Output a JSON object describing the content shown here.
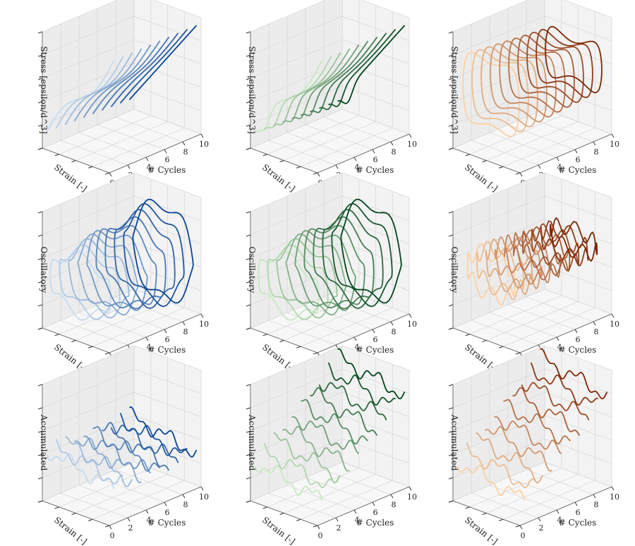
{
  "figure": {
    "type": "3d-line-grid",
    "x_axis_label": "# Cycles",
    "y_axis_label": "Strain [-]",
    "x_ticks": [
      "0",
      "2",
      "4",
      "6",
      "8",
      "10"
    ],
    "rows": [
      {
        "z_label": "Stress [epsilon/d^3]",
        "kind": "stress"
      },
      {
        "z_label": "Oscillatory",
        "kind": "oscillatory"
      },
      {
        "z_label": "Accumulated",
        "kind": "accumulated"
      }
    ],
    "columns": [
      {
        "name": "blue",
        "colors": [
          "#c6dbef",
          "#084594"
        ]
      },
      {
        "name": "green",
        "colors": [
          "#c7e9c0",
          "#00441b"
        ]
      },
      {
        "name": "orange",
        "colors": [
          "#fdd0a2",
          "#7f2704"
        ]
      }
    ],
    "pane_colors": {
      "left": "#f3f3f3",
      "back": "#ececec",
      "floor": "#f7f7f7",
      "grid": "#d9d9d9"
    }
  },
  "chart_data": [
    {
      "type": "line3d",
      "panel": "row1-col1",
      "zlabel": "Stress [epsilon/d^3]",
      "xlabel": "# Cycles",
      "ylabel": "Strain [-]",
      "xlim": [
        0,
        10
      ],
      "cycles": [
        0,
        1,
        2,
        3,
        4,
        5,
        6,
        7,
        8,
        9
      ],
      "shape": "descending stress-strain curves",
      "colormap": "Blues"
    },
    {
      "type": "line3d",
      "panel": "row1-col2",
      "zlabel": "Stress [epsilon/d^3]",
      "xlabel": "# Cycles",
      "ylabel": "Strain [-]",
      "xlim": [
        0,
        10
      ],
      "cycles": [
        0,
        1,
        2,
        3,
        4,
        5,
        6,
        7,
        8,
        9
      ],
      "shape": "descending stress-strain curves",
      "colormap": "Greens"
    },
    {
      "type": "line3d",
      "panel": "row1-col3",
      "zlabel": "Stress [epsilon/d^3]",
      "xlabel": "# Cycles",
      "ylabel": "Strain [-]",
      "xlim": [
        0,
        10
      ],
      "cycles": [
        0,
        1,
        2,
        3,
        4,
        5,
        6,
        7,
        8,
        9
      ],
      "shape": "hysteresis loops",
      "colormap": "Oranges"
    },
    {
      "type": "line3d",
      "panel": "row2-col1",
      "zlabel": "Oscillatory",
      "xlabel": "# Cycles",
      "ylabel": "Strain [-]",
      "xlim": [
        0,
        10
      ],
      "cycles": [
        0,
        1,
        2,
        3,
        4,
        5,
        6,
        7,
        8,
        9
      ],
      "shape": "oscillatory loops",
      "colormap": "Blues"
    },
    {
      "type": "line3d",
      "panel": "row2-col2",
      "zlabel": "Oscillatory",
      "xlabel": "# Cycles",
      "ylabel": "Strain [-]",
      "xlim": [
        0,
        10
      ],
      "cycles": [
        0,
        1,
        2,
        3,
        4,
        5,
        6,
        7,
        8,
        9
      ],
      "shape": "oscillatory loops",
      "colormap": "Greens"
    },
    {
      "type": "line3d",
      "panel": "row2-col3",
      "zlabel": "Oscillatory",
      "xlabel": "# Cycles",
      "ylabel": "Strain [-]",
      "xlim": [
        0,
        10
      ],
      "cycles": [
        0,
        1,
        2,
        3,
        4,
        5,
        6,
        7,
        8,
        9
      ],
      "shape": "noisy oscillatory loops",
      "colormap": "Oranges"
    },
    {
      "type": "line3d",
      "panel": "row3-col1",
      "zlabel": "Accumulated",
      "xlabel": "# Cycles",
      "ylabel": "Strain [-]",
      "xlim": [
        0,
        10
      ],
      "cycles": [
        0,
        1,
        2,
        3,
        4,
        5,
        6,
        7,
        8,
        9
      ],
      "shape": "noisy accumulated lines",
      "colormap": "Blues"
    },
    {
      "type": "line3d",
      "panel": "row3-col2",
      "zlabel": "Accumulated",
      "xlabel": "# Cycles",
      "ylabel": "Strain [-]",
      "xlim": [
        0,
        10
      ],
      "cycles": [
        0,
        1,
        2,
        3,
        4,
        5,
        6,
        7,
        8,
        9
      ],
      "shape": "rising accumulated lines",
      "colormap": "Greens"
    },
    {
      "type": "line3d",
      "panel": "row3-col3",
      "zlabel": "Accumulated",
      "xlabel": "# Cycles",
      "ylabel": "Strain [-]",
      "xlim": [
        0,
        10
      ],
      "cycles": [
        0,
        1,
        2,
        3,
        4,
        5,
        6,
        7,
        8,
        9
      ],
      "shape": "rising accumulated lines",
      "colormap": "Oranges"
    }
  ]
}
